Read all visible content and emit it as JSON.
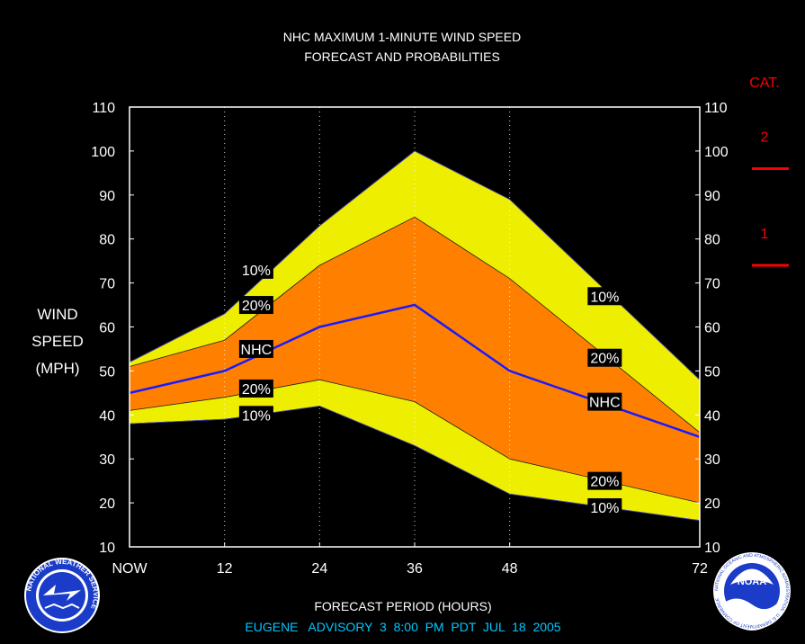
{
  "title_line1": "NHC MAXIMUM 1-MINUTE WIND SPEED",
  "title_line2": "FORECAST AND PROBABILITIES",
  "advisory": "EUGENE   ADVISORY  3  8:00  PM  PDT  JUL  18  2005",
  "ylabel_lines": [
    "WIND",
    "SPEED",
    "(MPH)"
  ],
  "xlabel": "FORECAST PERIOD (HOURS)",
  "category_panel": {
    "title": "CAT.",
    "categories": [
      {
        "label": "2",
        "threshold_mph": 96
      },
      {
        "label": "1",
        "threshold_mph": 74
      }
    ],
    "color": "#ff0000"
  },
  "logos": {
    "nws_text": "NATIONAL WEATHER SERVICE",
    "noaa_text": "NOAA",
    "noaa_ring_text": "NATIONAL OCEANIC AND ATMOSPHERIC ADMINISTRATION · U.S. DEPARTMENT OF COMMERCE"
  },
  "colors": {
    "band_10": "#eeee00",
    "band_20": "#ff8000",
    "nhc_line": "#1a1aff",
    "category": "#ff0000",
    "advisory": "#00c8ff"
  },
  "chart_data": {
    "type": "area",
    "x": [
      0,
      12,
      24,
      36,
      48,
      72
    ],
    "x_tick_values": [
      0,
      12,
      24,
      36,
      48,
      72
    ],
    "x_tick_labels": [
      "NOW",
      "12",
      "24",
      "36",
      "48",
      "72"
    ],
    "xlim": [
      0,
      72
    ],
    "ylim": [
      10,
      110
    ],
    "y_ticks": [
      10,
      20,
      30,
      40,
      50,
      60,
      70,
      80,
      90,
      100,
      110
    ],
    "grid": "vertical dotted",
    "series": [
      {
        "name": "10%",
        "role": "upper",
        "values": [
          52,
          63,
          83,
          100,
          89,
          48
        ]
      },
      {
        "name": "20%",
        "role": "upper",
        "values": [
          51,
          57,
          74,
          85,
          71,
          36
        ]
      },
      {
        "name": "NHC",
        "role": "forecast",
        "values": [
          45,
          50,
          60,
          65,
          50,
          35
        ]
      },
      {
        "name": "20%",
        "role": "lower",
        "values": [
          41,
          44,
          48,
          43,
          30,
          20
        ]
      },
      {
        "name": "10%",
        "role": "lower",
        "values": [
          38,
          39,
          42,
          33,
          22,
          16
        ]
      }
    ],
    "labels": [
      {
        "text": "10%",
        "x": 16,
        "y": 73
      },
      {
        "text": "20%",
        "x": 16,
        "y": 65
      },
      {
        "text": "NHC",
        "x": 16,
        "y": 55
      },
      {
        "text": "20%",
        "x": 16,
        "y": 46
      },
      {
        "text": "10%",
        "x": 16,
        "y": 40
      },
      {
        "text": "10%",
        "x": 60,
        "y": 67
      },
      {
        "text": "20%",
        "x": 60,
        "y": 53
      },
      {
        "text": "NHC",
        "x": 60,
        "y": 43
      },
      {
        "text": "20%",
        "x": 60,
        "y": 25
      },
      {
        "text": "10%",
        "x": 60,
        "y": 19
      }
    ]
  }
}
